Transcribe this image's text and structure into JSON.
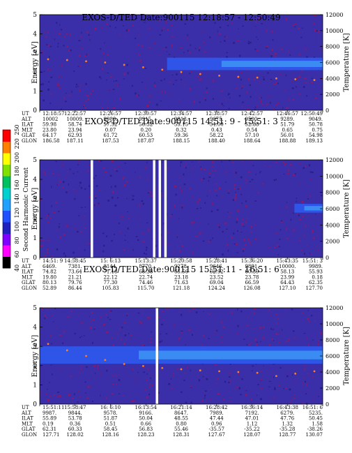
{
  "colorbar": {
    "label": "Second Harmonic Current",
    "ticks": [
      "40",
      "60",
      "80",
      "100",
      "120",
      "140",
      "160",
      "180",
      "200",
      "220",
      "250"
    ],
    "colors": [
      "#000000",
      "#ff00ff",
      "#8000ff",
      "#2020c0",
      "#2050ff",
      "#20a0ff",
      "#00d0d0",
      "#00c060",
      "#80e000",
      "#ffff00",
      "#ff8000",
      "#ff0000"
    ]
  },
  "chart_data": [
    {
      "type": "heatmap",
      "title": "EXOS-D/TED  Date:900115  12:18:57 - 12:50:49",
      "ylabel": "Energy [eV]",
      "ylabel_right": "Temperature [K]",
      "ylim": [
        0,
        5
      ],
      "yticks": [
        "0",
        "1",
        "2",
        "3",
        "4",
        "5"
      ],
      "ylim_right": [
        0,
        12000
      ],
      "yticks_right": [
        "0",
        "2000",
        "4000",
        "6000",
        "8000",
        "10000",
        "12000"
      ],
      "row_labels": [
        "UT",
        "ALT",
        "ILAT",
        "MLT",
        "GLAT",
        "GLON"
      ],
      "columns": [
        [
          "12:18:57",
          "10002",
          "59.98",
          "23.80",
          "64.17",
          "186.58"
        ],
        [
          "12:22:57",
          "10009.",
          "58.74",
          "23.94",
          "62.93",
          "187.11"
        ],
        [
          "12:26:57",
          "9980.",
          "57.52",
          "0.07",
          "61.72",
          "187.53"
        ],
        [
          "12:30:57",
          "9915.",
          "56.32",
          "0.20",
          "60.53",
          "187.87"
        ],
        [
          "12:34:57",
          "9813.",
          "55.15",
          "0.32",
          "59.36",
          "188.15"
        ],
        [
          "12:38:57",
          "9675.",
          "54.00",
          "0.43",
          "58.22",
          "188.40"
        ],
        [
          "12:42:57",
          "9500.",
          "52.88",
          "0.54",
          "57.10",
          "188.64"
        ],
        [
          "12:46:57",
          "9289.",
          "51.79",
          "0.65",
          "56.01",
          "188.88"
        ],
        [
          "12:50:49",
          "9049.",
          "50.78",
          "0.75",
          "54.98",
          "189.13"
        ]
      ],
      "temperature_trace_K": [
        6400,
        6300,
        6150,
        6000,
        5700,
        5400,
        5100,
        4800,
        4550,
        4350,
        4200,
        4100,
        4000,
        3900,
        3800
      ],
      "bands": [
        {
          "from_ev": 2.1,
          "to_ev": 2.75,
          "start": 0.45,
          "end": 1.0
        }
      ],
      "gaps": []
    },
    {
      "type": "heatmap",
      "title": "EXOS-D/TED  Date:900115  14:51: 9 - 15:51: 3",
      "ylabel": "Energy [eV]",
      "ylabel_right": "Temperature [K]",
      "ylim": [
        0,
        5
      ],
      "yticks": [
        "0",
        "1",
        "2",
        "3",
        "4",
        "5"
      ],
      "ylim_right": [
        0,
        12000
      ],
      "yticks_right": [
        "0",
        "2000",
        "4000",
        "6000",
        "8000",
        "10000",
        "12000"
      ],
      "row_labels": [
        "UT",
        "ALT",
        "ILAT",
        "MLT",
        "GLAT",
        "GLON"
      ],
      "columns": [
        [
          "14:51: 9",
          "6469.",
          "74.82",
          "19.80",
          "80.13",
          "52.89"
        ],
        [
          "14:58:45",
          "7381.",
          "73.64",
          "21.21",
          "79.76",
          "86.44"
        ],
        [
          "15: 6:13",
          "8144.",
          "71.16",
          "22.12",
          "77.30",
          "105.83"
        ],
        [
          "15:13:37",
          "8770.",
          "68.38",
          "22.74",
          "74.46",
          "115.70"
        ],
        [
          "15:20:58",
          "9278.",
          "65.56",
          "23.18",
          "71.63",
          "121.18"
        ],
        [
          "15:28:41",
          "9646.",
          "62.92",
          "23.52",
          "69.04",
          "124.24"
        ],
        [
          "15:36:20",
          "9891.",
          "60.39",
          "23.78",
          "66.59",
          "126.08"
        ],
        [
          "15:43:35",
          "10000.",
          "58.13",
          "23.99",
          "64.43",
          "127.10"
        ],
        [
          "15:51: 3",
          "9989.",
          "55.93",
          "0.18",
          "62.35",
          "127.70"
        ]
      ],
      "temperature_trace_K": [],
      "bands": [
        {
          "from_ev": 2.3,
          "to_ev": 2.75,
          "start": 0.9,
          "end": 1.0
        }
      ],
      "gaps": [
        0.18,
        0.4,
        0.42,
        0.44
      ]
    },
    {
      "type": "heatmap",
      "title": "EXOS-D/TED  Date:900115  15:51:11 - 16:51: 6",
      "ylabel": "Energy [eV]",
      "ylabel_right": "Temperature [K]",
      "ylim": [
        0,
        5
      ],
      "yticks": [
        "0",
        "1",
        "2",
        "3",
        "4",
        "5"
      ],
      "ylim_right": [
        0,
        12000
      ],
      "yticks_right": [
        "0",
        "2000",
        "4000",
        "6000",
        "8000",
        "10000",
        "12000"
      ],
      "row_labels": [
        "UT",
        "ALT",
        "ILAT",
        "MLT",
        "GLAT",
        "GLON"
      ],
      "columns": [
        [
          "15:51:11",
          "9987.",
          "55.89",
          "0.19",
          "62.31",
          "127.71"
        ],
        [
          "15:58:47",
          "9844.",
          "53.78",
          "0.36",
          "60.33",
          "128.02"
        ],
        [
          "16: 6:10",
          "9578.",
          "51.87",
          "0.51",
          "58.45",
          "128.16"
        ],
        [
          "16:13:54",
          "9166.",
          "50.04",
          "0.66",
          "56.83",
          "128.23"
        ],
        [
          "16:21:14",
          "8647.",
          "48.55",
          "0.80",
          "55.46",
          "128.31"
        ],
        [
          "16:28:42",
          "7989.",
          "47.44",
          "0.96",
          "-35.57",
          "127.67"
        ],
        [
          "16:36:14",
          "7192.",
          "47.01",
          "1.12",
          "-35.22",
          "128.07"
        ],
        [
          "16:43:38",
          "6279.",
          "47.76",
          "1.32",
          "-35.28",
          "128.77"
        ],
        [
          "16:51: 6",
          "5235.",
          "50.45",
          "1.58",
          "-38.26",
          "130.07"
        ]
      ],
      "temperature_trace_K": [
        7500,
        6700,
        6000,
        5500,
        5000,
        4750,
        4500,
        4350,
        4200,
        4100,
        4000,
        3900,
        3500,
        3800,
        4100
      ],
      "bands": [
        {
          "from_ev": 2.1,
          "to_ev": 3.0,
          "start": 0.0,
          "end": 1.0
        }
      ],
      "gaps": [
        0.41
      ]
    }
  ]
}
